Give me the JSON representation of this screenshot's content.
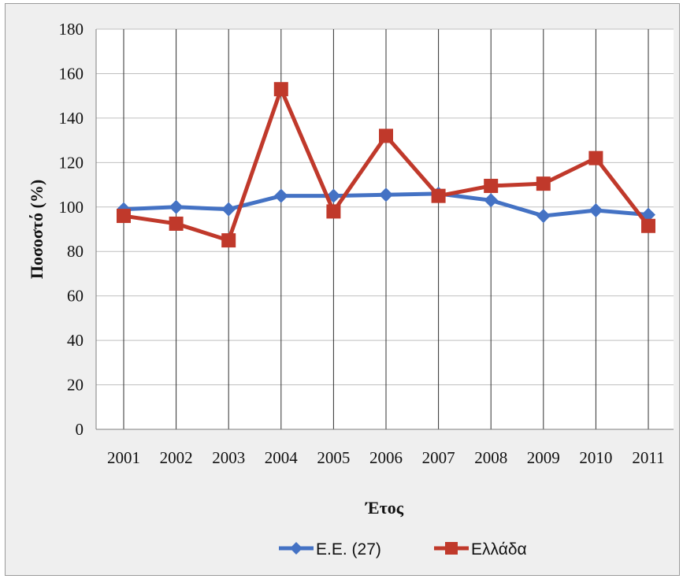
{
  "chart_data": {
    "type": "line",
    "title": "",
    "xlabel": "Έτος",
    "ylabel": "Ποσοστό (%)",
    "ylim": [
      0,
      180
    ],
    "yticks": [
      0,
      20,
      40,
      60,
      80,
      100,
      120,
      140,
      160,
      180
    ],
    "grid": "vertical lines at categories",
    "legend_position": "bottom",
    "categories": [
      "2001",
      "2002",
      "2003",
      "2004",
      "2005",
      "2006",
      "2007",
      "2008",
      "2009",
      "2010",
      "2011"
    ],
    "series": [
      {
        "name": "E.E. (27)",
        "color": "#4472c4",
        "marker": "diamond",
        "values": [
          99,
          100,
          99,
          105,
          105,
          105.5,
          106,
          103,
          96,
          98.5,
          96.5
        ]
      },
      {
        "name": "Ελλάδα",
        "color": "#c0392b",
        "marker": "square",
        "values": [
          96,
          92.5,
          85,
          153,
          98,
          132,
          105,
          109.5,
          110.5,
          122,
          91.5
        ]
      }
    ]
  }
}
